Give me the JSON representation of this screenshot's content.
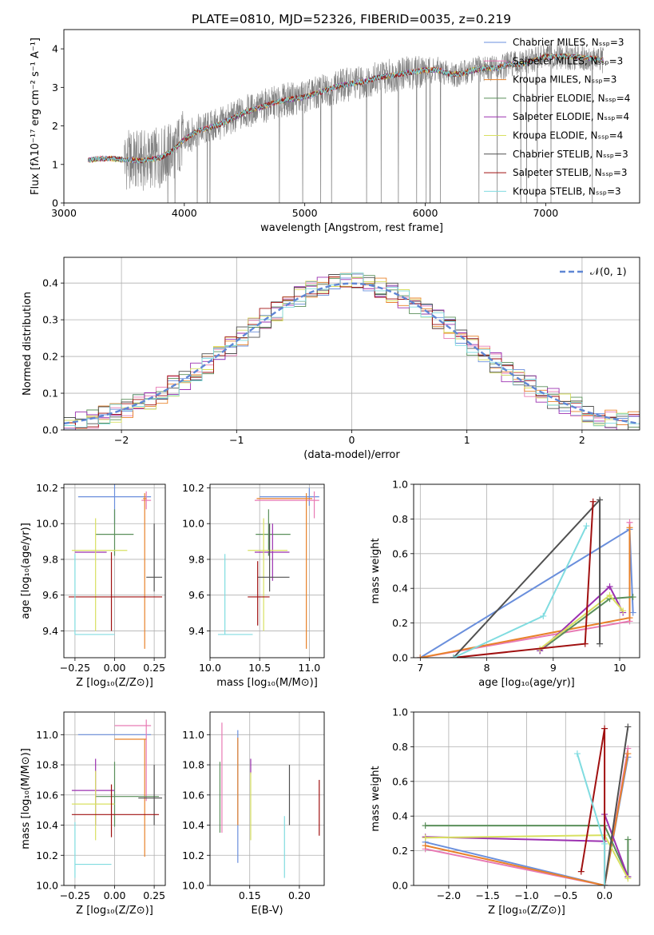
{
  "figure": {
    "title": "PLATE=0810, MJD=52326, FIBERID=0035, z=0.219",
    "series_styles": [
      {
        "key": "chabrier_miles",
        "color": "#6a8fdc"
      },
      {
        "key": "salpeter_miles",
        "color": "#e87ab4"
      },
      {
        "key": "kroupa_miles",
        "color": "#e8822a"
      },
      {
        "key": "chabrier_elodie",
        "color": "#5a8f5a"
      },
      {
        "key": "salpeter_elodie",
        "color": "#9b30b0"
      },
      {
        "key": "kroupa_elodie",
        "color": "#d8e060"
      },
      {
        "key": "chabrier_stelib",
        "color": "#505050"
      },
      {
        "key": "salpeter_stelib",
        "color": "#a01010"
      },
      {
        "key": "kroupa_stelib",
        "color": "#80dce0"
      }
    ],
    "data_color": "#808080"
  },
  "chart_data": [
    {
      "id": "spectrum",
      "type": "line",
      "title": "PLATE=0810, MJD=52326, FIBERID=0035, z=0.219",
      "xlabel": "wavelength [Angstrom, rest frame]",
      "ylabel": "Flux [fλ10⁻¹⁷ erg cm⁻² s⁻¹ A⁻¹]",
      "xlim": [
        3000,
        7780
      ],
      "ylim": [
        0,
        4.5
      ],
      "xticks": [
        "3000",
        "4000",
        "5000",
        "6000",
        "7000"
      ],
      "yticks": [
        "0",
        "1",
        "2",
        "3",
        "4"
      ],
      "legend_position": "right",
      "legend": [
        "Chabrier MILES, Nₛₛₚ=3",
        "Salpeter MILES, Nₛₛₚ=3",
        "Kroupa MILES, Nₛₛₚ=3",
        "Chabrier ELODIE, Nₛₛₚ=4",
        "Salpeter ELODIE, Nₛₛₚ=4",
        "Kroupa ELODIE, Nₛₛₚ=4",
        "Chabrier STELIB, Nₛₛₚ=3",
        "Salpeter STELIB, Nₛₛₚ=3",
        "Kroupa STELIB, Nₛₛₚ=3"
      ],
      "model_continuum": {
        "x": [
          3200,
          3300,
          3400,
          3500,
          3600,
          3700,
          3800,
          3900,
          4000,
          4100,
          4200,
          4300,
          4400,
          4500,
          4600,
          4700,
          4800,
          4900,
          5000,
          5100,
          5200,
          5300,
          5400,
          5500,
          5600,
          5700,
          5800,
          5900,
          6000,
          6100,
          6200,
          6300,
          6400,
          6500,
          6600,
          6700,
          6800,
          6900,
          7000,
          7100,
          7200,
          7300,
          7400,
          7480
        ],
        "y": [
          1.1,
          1.15,
          1.15,
          1.12,
          1.1,
          1.12,
          1.18,
          1.35,
          1.65,
          1.85,
          1.95,
          2.05,
          2.2,
          2.35,
          2.45,
          2.55,
          2.65,
          2.7,
          2.75,
          2.85,
          2.95,
          3.05,
          3.1,
          3.15,
          3.25,
          3.3,
          3.35,
          3.4,
          3.45,
          3.45,
          3.35,
          3.35,
          3.45,
          3.5,
          3.5,
          3.6,
          3.6,
          3.7,
          3.8,
          3.8,
          3.8,
          3.78,
          3.75,
          3.7
        ]
      },
      "observed_range": [
        3500,
        7480
      ]
    },
    {
      "id": "residuals",
      "type": "line",
      "xlabel": "(data-model)/error",
      "ylabel": "Normed distribution",
      "xlim": [
        -2.5,
        2.5
      ],
      "ylim": [
        0,
        0.47
      ],
      "xticks": [
        "−2",
        "−1",
        "0",
        "1",
        "2"
      ],
      "yticks": [
        "0.0",
        "0.1",
        "0.2",
        "0.3",
        "0.4"
      ],
      "legend_position": "top-right",
      "legend": [
        "𝒩(0, 1)"
      ],
      "bin_width": 0.1
    },
    {
      "id": "age_vs_Z",
      "type": "scatter",
      "xlabel": "Z [log₁₀(Z/Z⊙)]",
      "ylabel": "age  [log₁₀(age/yr)]",
      "xlim": [
        -0.32,
        0.32
      ],
      "ylim": [
        9.25,
        10.22
      ],
      "xticks": [
        "−0.25",
        "0.00",
        "0.25"
      ],
      "yticks": [
        "9.4",
        "9.6",
        "9.8",
        "10.0",
        "10.2"
      ],
      "points": [
        {
          "series": 0,
          "x": 0.0,
          "xerr": [
            0.23,
            0.23
          ],
          "y": 10.15,
          "yerr": [
            0.15,
            0.15
          ]
        },
        {
          "series": 1,
          "x": 0.2,
          "xerr": [
            0.03,
            0.03
          ],
          "y": 10.13,
          "yerr": [
            0.05,
            0.05
          ]
        },
        {
          "series": 2,
          "x": 0.19,
          "xerr": [
            0.01,
            0.01
          ],
          "y": 10.14,
          "yerr": [
            0.84,
            0.03
          ]
        },
        {
          "series": 3,
          "x": 0.0,
          "xerr": [
            0.12,
            0.12
          ],
          "y": 9.94,
          "yerr": [
            0.12,
            0.14
          ]
        },
        {
          "series": 4,
          "x": -0.05,
          "xerr": [
            0.2,
            0.0
          ],
          "y": 9.84,
          "yerr": [
            0.0,
            0.0
          ]
        },
        {
          "series": 5,
          "x": -0.12,
          "xerr": [
            0.15,
            0.2
          ],
          "y": 9.85,
          "yerr": [
            0.45,
            0.18
          ]
        },
        {
          "series": 6,
          "x": 0.25,
          "xerr": [
            0.05,
            0.05
          ],
          "y": 9.7,
          "yerr": [
            0.08,
            0.3
          ]
        },
        {
          "series": 7,
          "x": -0.02,
          "xerr": [
            0.27,
            0.32
          ],
          "y": 9.59,
          "yerr": [
            0.19,
            0.25
          ]
        },
        {
          "series": 8,
          "x": -0.25,
          "xerr": [
            0.0,
            0.25
          ],
          "y": 9.38,
          "yerr": [
            0.0,
            0.45
          ]
        }
      ]
    },
    {
      "id": "age_vs_mass",
      "type": "scatter",
      "xlabel": "mass [log₁₀(M/M⊙)]",
      "ylabel": "",
      "xlim": [
        10.0,
        11.15
      ],
      "ylim": [
        9.25,
        10.22
      ],
      "xticks": [
        "10.0",
        "10.5",
        "11.0"
      ],
      "yticks": [
        "9.4",
        "9.6",
        "9.8",
        "10.0",
        "10.2"
      ],
      "points": [
        {
          "series": 0,
          "x": 11.0,
          "xerr": [
            0.5,
            0.1
          ],
          "y": 10.15,
          "yerr": [
            0.05,
            0.05
          ]
        },
        {
          "series": 1,
          "x": 11.05,
          "xerr": [
            0.6,
            0.05
          ],
          "y": 10.13,
          "yerr": [
            0.1,
            0.05
          ]
        },
        {
          "series": 2,
          "x": 10.97,
          "xerr": [
            0.5,
            0.06
          ],
          "y": 10.14,
          "yerr": [
            0.84,
            0.03
          ]
        },
        {
          "series": 3,
          "x": 10.59,
          "xerr": [
            0.13,
            0.22
          ],
          "y": 9.94,
          "yerr": [
            0.12,
            0.14
          ]
        },
        {
          "series": 4,
          "x": 10.63,
          "xerr": [
            0.18,
            0.17
          ],
          "y": 9.84,
          "yerr": [
            0.16,
            0.16
          ]
        },
        {
          "series": 5,
          "x": 10.54,
          "xerr": [
            0.16,
            0.24
          ],
          "y": 9.85,
          "yerr": [
            0.45,
            0.18
          ]
        },
        {
          "series": 6,
          "x": 10.6,
          "xerr": [
            0.12,
            0.2
          ],
          "y": 9.7,
          "yerr": [
            0.08,
            0.3
          ]
        },
        {
          "series": 7,
          "x": 10.48,
          "xerr": [
            0.1,
            0.12
          ],
          "y": 9.59,
          "yerr": [
            0.16,
            0.2
          ]
        },
        {
          "series": 8,
          "x": 10.15,
          "xerr": [
            0.07,
            0.28
          ],
          "y": 9.38,
          "yerr": [
            0.0,
            0.45
          ]
        }
      ]
    },
    {
      "id": "mw_vs_age",
      "type": "line",
      "xlabel": "age  [log₁₀(age/yr)]",
      "ylabel": "mass weight",
      "xlim": [
        6.9,
        10.3
      ],
      "ylim": [
        0,
        1.0
      ],
      "xticks": [
        "7",
        "8",
        "9",
        "10"
      ],
      "yticks": [
        "0.0",
        "0.2",
        "0.4",
        "0.6",
        "0.8",
        "1.0"
      ],
      "series": [
        {
          "series": 0,
          "x": [
            7.0,
            10.15,
            10.2
          ],
          "y": [
            0.0,
            0.74,
            0.26
          ]
        },
        {
          "series": 1,
          "x": [
            7.0,
            10.15,
            10.15
          ],
          "y": [
            0.0,
            0.21,
            0.78
          ]
        },
        {
          "series": 2,
          "x": [
            7.0,
            10.15,
            10.15
          ],
          "y": [
            0.0,
            0.23,
            0.75
          ]
        },
        {
          "series": 3,
          "x": [
            8.8,
            9.85,
            10.2
          ],
          "y": [
            0.04,
            0.34,
            0.35
          ]
        },
        {
          "series": 4,
          "x": [
            8.8,
            9.85,
            10.05
          ],
          "y": [
            0.04,
            0.41,
            0.26
          ]
        },
        {
          "series": 5,
          "x": [
            8.8,
            9.85,
            10.05
          ],
          "y": [
            0.05,
            0.36,
            0.27
          ]
        },
        {
          "series": 6,
          "x": [
            7.5,
            9.7,
            9.7
          ],
          "y": [
            0.0,
            0.91,
            0.08
          ]
        },
        {
          "series": 7,
          "x": [
            7.5,
            9.48,
            9.6
          ],
          "y": [
            0.0,
            0.08,
            0.9
          ]
        },
        {
          "series": 8,
          "x": [
            7.5,
            8.85,
            9.5
          ],
          "y": [
            0.0,
            0.24,
            0.76
          ]
        }
      ]
    },
    {
      "id": "mass_vs_Z",
      "type": "scatter",
      "xlabel": "Z [log₁₀(Z/Z⊙)]",
      "ylabel": "mass [log₁₀(M/M⊙)]",
      "xlim": [
        -0.32,
        0.32
      ],
      "ylim": [
        10.0,
        11.15
      ],
      "xticks": [
        "−0.25",
        "0.00",
        "0.25"
      ],
      "yticks": [
        "10.0",
        "10.2",
        "10.4",
        "10.6",
        "10.8",
        "11.0"
      ],
      "points": [
        {
          "series": 0,
          "x": 0.0,
          "xerr": [
            0.23,
            0.23
          ],
          "y": 11.0,
          "yerr": [
            0.0,
            0.0
          ]
        },
        {
          "series": 1,
          "x": 0.2,
          "xerr": [
            0.2,
            0.03
          ],
          "y": 11.06,
          "yerr": [
            0.5,
            0.04
          ]
        },
        {
          "series": 2,
          "x": 0.19,
          "xerr": [
            0.19,
            0.01
          ],
          "y": 10.97,
          "yerr": [
            0.78,
            0.0
          ]
        },
        {
          "series": 3,
          "x": 0.0,
          "xerr": [
            0.12,
            0.28
          ],
          "y": 10.59,
          "yerr": [
            0.2,
            0.23
          ]
        },
        {
          "series": 4,
          "x": -0.12,
          "xerr": [
            0.15,
            0.12
          ],
          "y": 10.63,
          "yerr": [
            0.23,
            0.21
          ]
        },
        {
          "series": 5,
          "x": -0.12,
          "xerr": [
            0.15,
            0.12
          ],
          "y": 10.54,
          "yerr": [
            0.24,
            0.22
          ]
        },
        {
          "series": 6,
          "x": 0.25,
          "xerr": [
            0.1,
            0.05
          ],
          "y": 10.58,
          "yerr": [
            0.18,
            0.22
          ]
        },
        {
          "series": 7,
          "x": -0.02,
          "xerr": [
            0.25,
            0.3
          ],
          "y": 10.47,
          "yerr": [
            0.15,
            0.2
          ]
        },
        {
          "series": 8,
          "x": -0.25,
          "xerr": [
            0.0,
            0.23
          ],
          "y": 10.14,
          "yerr": [
            0.09,
            0.28
          ]
        }
      ]
    },
    {
      "id": "mass_vs_ebv",
      "type": "scatter",
      "xlabel": "E(B-V)",
      "ylabel": "",
      "xlim": [
        0.11,
        0.225
      ],
      "ylim": [
        10.0,
        11.15
      ],
      "xticks": [
        "0.15",
        "0.20"
      ],
      "yticks": [
        "10.0",
        "10.2",
        "10.4",
        "10.6",
        "10.8",
        "11.0"
      ],
      "points": [
        {
          "series": 0,
          "x": 0.138,
          "xerr": [
            0,
            0
          ],
          "y": 10.6,
          "yerr": [
            0.45,
            0.43
          ]
        },
        {
          "series": 1,
          "x": 0.122,
          "xerr": [
            0,
            0
          ],
          "y": 10.7,
          "yerr": [
            0.35,
            0.38
          ]
        },
        {
          "series": 2,
          "x": 0.138,
          "xerr": [
            0,
            0
          ],
          "y": 10.65,
          "yerr": [
            0.25,
            0.33
          ]
        },
        {
          "series": 3,
          "x": 0.12,
          "xerr": [
            0,
            0
          ],
          "y": 10.55,
          "yerr": [
            0.2,
            0.27
          ]
        },
        {
          "series": 4,
          "x": 0.151,
          "xerr": [
            0,
            0
          ],
          "y": 10.78,
          "yerr": [
            0.04,
            0.06
          ]
        },
        {
          "series": 5,
          "x": 0.151,
          "xerr": [
            0,
            0
          ],
          "y": 10.55,
          "yerr": [
            0.25,
            0.2
          ]
        },
        {
          "series": 6,
          "x": 0.19,
          "xerr": [
            0,
            0
          ],
          "y": 10.6,
          "yerr": [
            0.2,
            0.2
          ]
        },
        {
          "series": 7,
          "x": 0.22,
          "xerr": [
            0,
            0
          ],
          "y": 10.5,
          "yerr": [
            0.17,
            0.2
          ]
        },
        {
          "series": 8,
          "x": 0.185,
          "xerr": [
            0,
            0
          ],
          "y": 10.25,
          "yerr": [
            0.2,
            0.21
          ]
        }
      ]
    },
    {
      "id": "mw_vs_Z",
      "type": "line",
      "xlabel": "Z [log₁₀(Z/Z⊙)]",
      "ylabel": "mass weight",
      "xlim": [
        -2.45,
        0.45
      ],
      "ylim": [
        0,
        1.0
      ],
      "xticks": [
        "−2.0",
        "−1.5",
        "−1.0",
        "−0.5",
        "0.0"
      ],
      "yticks": [
        "0.0",
        "0.2",
        "0.4",
        "0.6",
        "0.8",
        "1.0"
      ],
      "series": [
        {
          "series": 0,
          "x": [
            -2.3,
            0.0,
            0.3
          ],
          "y": [
            0.25,
            0.0,
            0.74
          ]
        },
        {
          "series": 1,
          "x": [
            -2.3,
            0.0,
            0.3
          ],
          "y": [
            0.21,
            0.0,
            0.79
          ]
        },
        {
          "series": 2,
          "x": [
            -2.3,
            0.0,
            0.3
          ],
          "y": [
            0.23,
            0.0,
            0.76
          ]
        },
        {
          "series": 3,
          "x": [
            -2.3,
            0.0,
            0.3,
            0.3
          ],
          "y": [
            0.345,
            0.345,
            0.05,
            0.265
          ]
        },
        {
          "series": 4,
          "x": [
            -2.3,
            0.0,
            0.0,
            0.3
          ],
          "y": [
            0.28,
            0.255,
            0.41,
            0.05
          ]
        },
        {
          "series": 5,
          "x": [
            -2.3,
            0.0,
            0.3
          ],
          "y": [
            0.275,
            0.29,
            0.04
          ]
        },
        {
          "series": 6,
          "x": [
            0.0,
            0.3
          ],
          "y": [
            0.0,
            0.915
          ]
        },
        {
          "series": 7,
          "x": [
            -0.3,
            0.0,
            0.0
          ],
          "y": [
            0.08,
            0.905,
            0.0
          ]
        },
        {
          "series": 8,
          "x": [
            -0.35,
            0.0,
            0.0
          ],
          "y": [
            0.76,
            0.24,
            0.0
          ]
        }
      ]
    }
  ]
}
